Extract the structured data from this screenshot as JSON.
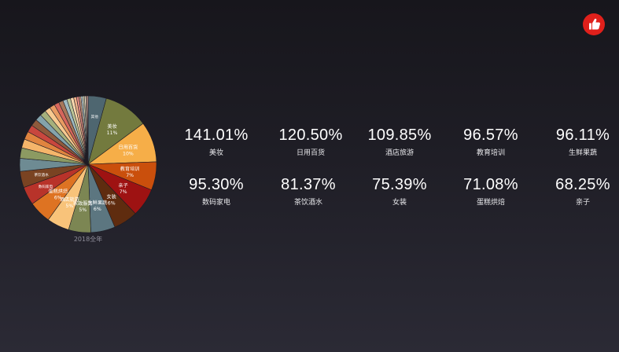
{
  "brand": {
    "icon": "thumbs-up-icon",
    "color": "#e0201b"
  },
  "chart_data": {
    "type": "pie",
    "caption": "2018全年",
    "slices": [
      {
        "label": "其他",
        "value": 4.5,
        "percent": "",
        "color": "#4e6670"
      },
      {
        "label": "美妆",
        "value": 11,
        "percent": "11%",
        "color": "#737a3e"
      },
      {
        "label": "日用百货",
        "value": 10,
        "percent": "10%",
        "color": "#f6ae48"
      },
      {
        "label": "教育培训",
        "value": 7,
        "percent": "7%",
        "color": "#ca4f0c"
      },
      {
        "label": "亲子",
        "value": 7,
        "percent": "7%",
        "color": "#9e1212"
      },
      {
        "label": "女装",
        "value": 6,
        "percent": "6%",
        "color": "#5f2c0f"
      },
      {
        "label": "生鲜果蔬",
        "value": 6,
        "percent": "6%",
        "color": "#5c7680"
      },
      {
        "label": "家政服务",
        "value": 5.5,
        "percent": "5%",
        "color": "#7c8653"
      },
      {
        "label": "酒店旅游",
        "value": 5.5,
        "percent": "5%",
        "color": "#f8c37a"
      },
      {
        "label": "蛋糕烘焙",
        "value": 5.5,
        "percent": "6%",
        "color": "#de7322"
      },
      {
        "label": "数码家电",
        "value": 4.5,
        "percent": "",
        "color": "#b8332a"
      },
      {
        "label": "茶饮酒水",
        "value": 4,
        "percent": "",
        "color": "#7a4322"
      },
      {
        "label": "",
        "value": 3.2,
        "percent": "",
        "color": "#6e8b93"
      },
      {
        "label": "",
        "value": 2.6,
        "percent": "",
        "color": "#8c9a62"
      },
      {
        "label": "",
        "value": 2.2,
        "percent": "",
        "color": "#f5b56a"
      },
      {
        "label": "",
        "value": 2,
        "percent": "",
        "color": "#e0843f"
      },
      {
        "label": "",
        "value": 1.8,
        "percent": "",
        "color": "#c8473e"
      },
      {
        "label": "",
        "value": 1.7,
        "percent": "",
        "color": "#8e5a3c"
      },
      {
        "label": "",
        "value": 1.6,
        "percent": "",
        "color": "#84a3ab"
      },
      {
        "label": "",
        "value": 1.5,
        "percent": "",
        "color": "#a5b07c"
      },
      {
        "label": "",
        "value": 1.4,
        "percent": "",
        "color": "#f7c98f"
      },
      {
        "label": "",
        "value": 1.3,
        "percent": "",
        "color": "#e89b62"
      },
      {
        "label": "",
        "value": 1.2,
        "percent": "",
        "color": "#d6665c"
      },
      {
        "label": "",
        "value": 1.1,
        "percent": "",
        "color": "#a8775a"
      },
      {
        "label": "",
        "value": 1.0,
        "percent": "",
        "color": "#9fbac1"
      },
      {
        "label": "",
        "value": 0.9,
        "percent": "",
        "color": "#bcc598"
      },
      {
        "label": "",
        "value": 0.8,
        "percent": "",
        "color": "#f9d8ad"
      },
      {
        "label": "",
        "value": 0.7,
        "percent": "",
        "color": "#efb28a"
      },
      {
        "label": "",
        "value": 0.6,
        "percent": "",
        "color": "#e58c84"
      },
      {
        "label": "",
        "value": 0.5,
        "percent": "",
        "color": "#c2967c"
      },
      {
        "label": "",
        "value": 0.45,
        "percent": "",
        "color": "#bcd0d5"
      },
      {
        "label": "",
        "value": 0.4,
        "percent": "",
        "color": "#d2d8b6"
      },
      {
        "label": "",
        "value": 0.35,
        "percent": "",
        "color": "#fbe6c9"
      },
      {
        "label": "",
        "value": 0.3,
        "percent": "",
        "color": "#f3cbb0"
      },
      {
        "label": "",
        "value": 0.25,
        "percent": "",
        "color": "#f0b3ad"
      }
    ]
  },
  "stats": [
    {
      "value": "141.01%",
      "label": "美妆"
    },
    {
      "value": "120.50%",
      "label": "日用百货"
    },
    {
      "value": "109.85%",
      "label": "酒店旅游"
    },
    {
      "value": "96.57%",
      "label": "教育培训"
    },
    {
      "value": "96.11%",
      "label": "生鲜果蔬"
    },
    {
      "value": "95.30%",
      "label": "数码家电"
    },
    {
      "value": "81.37%",
      "label": "茶饮酒水"
    },
    {
      "value": "75.39%",
      "label": "女装"
    },
    {
      "value": "71.08%",
      "label": "蛋糕烘焙"
    },
    {
      "value": "68.25%",
      "label": "亲子"
    }
  ]
}
